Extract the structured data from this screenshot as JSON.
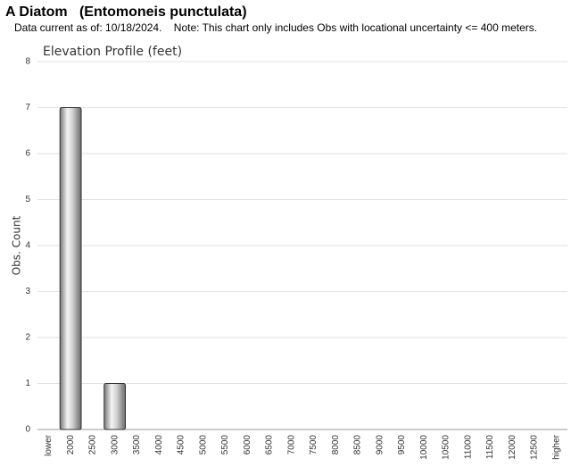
{
  "header": {
    "title": "A Diatom   (Entomoneis punctulata)",
    "subtitle": "Data current as of: 10/18/2024.    Note: This chart only includes Obs with locational uncertainty <= 400 meters."
  },
  "chart_data": {
    "type": "bar",
    "title": "Elevation Profile (feet)",
    "y_label": "Obs. Count",
    "categories": [
      "lower",
      "2000",
      "2500",
      "3000",
      "3500",
      "4000",
      "4500",
      "5000",
      "5500",
      "6000",
      "6500",
      "7000",
      "7500",
      "8000",
      "8500",
      "9000",
      "9500",
      "10000",
      "10500",
      "11000",
      "11500",
      "12000",
      "12500",
      "higher"
    ],
    "values": [
      0,
      7,
      0,
      1,
      0,
      0,
      0,
      0,
      0,
      0,
      0,
      0,
      0,
      0,
      0,
      0,
      0,
      0,
      0,
      0,
      0,
      0,
      0,
      0
    ],
    "ylim": [
      0,
      8
    ],
    "yticks": [
      0,
      1,
      2,
      3,
      4,
      5,
      6,
      7,
      8
    ],
    "grid": true
  }
}
